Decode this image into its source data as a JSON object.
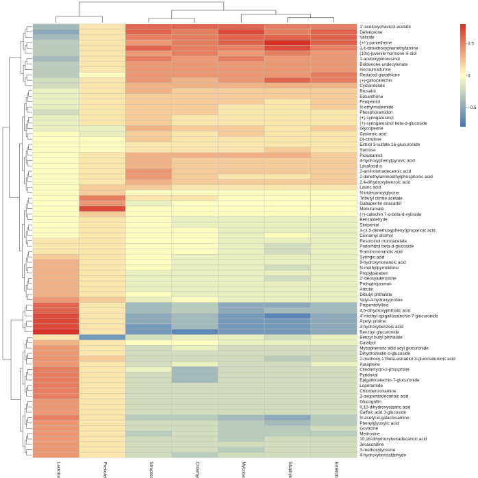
{
  "chart_data": {
    "type": "heatmap",
    "title": "",
    "xlabel": "",
    "ylabel": "",
    "columns": [
      "Lactobacillus",
      "Prevotella",
      "Streptococcus",
      "Chlamydia",
      "Mycobacterium",
      "Staphylococcus",
      "Enterobacter"
    ],
    "rows": [
      "1'-acetoxychavicol acetate",
      "Deferiprone",
      "Valtrate",
      "(+/-)-pantetheine",
      "3,4-dimethoxyphenethylamine",
      "(10s)-juvenile hormone iii diol",
      "1-acetoxypinoresinol",
      "Boldenone undecylenate",
      "Isocoumadurine",
      "Reduced glutathione",
      "(+)-gallocatechin",
      "Cyclandelate",
      "Brusatol",
      "Euxanthone",
      "Fenipentol",
      "N-ethylmaleimide",
      "Phosphoramidon",
      "(+)-syringaresinol",
      "(+)-syringaresinol beta-d-glucoside",
      "Glycoperine",
      "Cyclamic acid",
      "Dl-citrulline",
      "Estriol 3-sulfate 16-glucuronide",
      "Sucrose",
      "Piceatannol",
      "4-hydroxyphenylpyruvic acid",
      "Lasalocid a",
      "2-aminotetradecanoic acid",
      "2-dimethylaminoethylphosphonic acid",
      "2,4-dihydroxybenzoic acid",
      "Lauric acid",
      "N-tridecanoylglycine",
      "Tributyl citrate acetate",
      "Gabapentin enacarbil",
      "Mebutamate",
      "(+)-catechin 7-o-beta-d-xyloside",
      "Benzaldehyde",
      "Stiripentol",
      "3-(3,5-dimethoxyphenyl)propanoic acid",
      "Cinnamyl alcohol",
      "Resorcinol monoacetate",
      "Podorhizol beta-d-glucoside",
      "9-aminononanoic acid",
      "Syringic acid",
      "9-hydroxynonanoic acid",
      "N-methylpyrrolidone",
      "Propylparaben",
      "2'-deoxyadenosine",
      "Prohydrojasmon",
      "Arbutin",
      "Dibutyl phthalate",
      "Valyl-4-hydroxyproline",
      "Propentofylline",
      "4,5-dihydroxyphthalic acid",
      "4'-methyl-epigallocatechin-7-glucuronide",
      "Acetyl proline",
      "3-hydroxybenzoic acid",
      "Benzoyl glucuronide",
      "Benzyl butyl phthalate",
      "Catalpol",
      "Mycophenolic acid acyl glucuronide",
      "Dihydrozeatin-o-glucoside",
      "2-methoxy-17beta-estradiol 3-glucosiduronic acid",
      "Auraptene",
      "Clindamycin-2-phosphate",
      "Pyridoxal",
      "Epigallocatechin-7-glucuronide",
      "Loperamide",
      "Chlorbenzoxamine",
      "3-oxopentadecanoic acid",
      "Glucogallin",
      "9,10-dihydroxystearic acid",
      "Caffeic acid 3-glucoside",
      "N-acetyl-d-galactosamine",
      "Phenylglyoxylic acid",
      "Guvacine",
      "Metirosine",
      "10,16-dihydroxyhexadecanoic acid",
      "Jesaconitine",
      "3-methoxytyrosine",
      "4-hydroxybenzaldehyde"
    ],
    "values": [
      [
        -0.4,
        0.1,
        0.6,
        0.6,
        0.6,
        0.5,
        0.5
      ],
      [
        -0.5,
        0.1,
        0.6,
        0.5,
        0.7,
        0.5,
        0.6
      ],
      [
        -0.4,
        0.1,
        0.5,
        0.5,
        0.6,
        0.6,
        0.6
      ],
      [
        -0.3,
        0.1,
        0.4,
        0.5,
        0.6,
        0.8,
        0.6
      ],
      [
        -0.3,
        0.1,
        0.6,
        0.5,
        0.5,
        0.7,
        0.5
      ],
      [
        -0.3,
        0.1,
        0.4,
        0.5,
        0.4,
        0.5,
        0.4
      ],
      [
        -0.4,
        0.1,
        0.5,
        0.4,
        0.5,
        0.4,
        0.4
      ],
      [
        -0.3,
        0.1,
        0.4,
        0.4,
        0.4,
        0.4,
        0.4
      ],
      [
        -0.3,
        0.1,
        0.4,
        0.4,
        0.4,
        0.4,
        0.4
      ],
      [
        -0.3,
        0.0,
        0.4,
        0.4,
        0.4,
        0.4,
        0.5
      ],
      [
        -0.2,
        0.1,
        0.4,
        0.3,
        0.4,
        0.6,
        0.5
      ],
      [
        -0.2,
        0.1,
        0.3,
        0.3,
        0.3,
        0.3,
        0.3
      ],
      [
        -0.1,
        0.1,
        0.3,
        0.2,
        0.2,
        0.2,
        0.2
      ],
      [
        -0.1,
        0.1,
        0.2,
        0.2,
        0.2,
        0.2,
        0.2
      ],
      [
        -0.1,
        0.1,
        0.2,
        0.2,
        0.2,
        0.1,
        0.2
      ],
      [
        -0.1,
        0.1,
        0.2,
        0.2,
        0.1,
        0.1,
        0.2
      ],
      [
        -0.2,
        0.1,
        0.2,
        0.2,
        0.1,
        0.1,
        0.1
      ],
      [
        -0.1,
        0.1,
        0.2,
        0.1,
        0.1,
        0.1,
        0.1
      ],
      [
        -0.1,
        0.1,
        0.2,
        0.1,
        0.1,
        0.1,
        0.1
      ],
      [
        -0.1,
        -0.1,
        0.3,
        0.2,
        0.2,
        0.1,
        0.2
      ],
      [
        0.0,
        -0.1,
        0.2,
        0.1,
        0.2,
        0.1,
        0.1
      ],
      [
        0.0,
        0.0,
        0.2,
        0.1,
        0.1,
        0.1,
        0.1
      ],
      [
        0.0,
        0.0,
        0.1,
        0.1,
        0.1,
        0.1,
        0.1
      ],
      [
        0.0,
        0.0,
        0.1,
        0.1,
        0.1,
        0.2,
        0.1
      ],
      [
        0.0,
        0.1,
        0.3,
        0.3,
        0.3,
        0.3,
        0.2
      ],
      [
        0.0,
        0.1,
        0.3,
        0.2,
        0.2,
        0.2,
        0.2
      ],
      [
        0.0,
        0.1,
        0.3,
        0.2,
        0.2,
        0.2,
        0.2
      ],
      [
        0.0,
        0.1,
        0.4,
        0.2,
        0.2,
        0.2,
        0.2
      ],
      [
        0.0,
        0.1,
        0.4,
        0.2,
        0.1,
        0.1,
        0.2
      ],
      [
        0.0,
        0.1,
        0.3,
        0.2,
        0.2,
        0.2,
        0.2
      ],
      [
        0.0,
        0.2,
        0.2,
        0.1,
        0.1,
        0.1,
        0.1
      ],
      [
        0.0,
        0.2,
        0.0,
        0.0,
        0.0,
        0.0,
        0.0
      ],
      [
        0.0,
        0.5,
        0.1,
        0.1,
        0.0,
        0.0,
        0.0
      ],
      [
        0.0,
        0.4,
        -0.1,
        0.0,
        0.0,
        0.0,
        0.0
      ],
      [
        0.0,
        0.7,
        0.0,
        0.0,
        0.0,
        0.0,
        0.0
      ],
      [
        0.0,
        0.2,
        0.0,
        0.0,
        0.0,
        0.0,
        0.0
      ],
      [
        0.0,
        0.1,
        0.0,
        -0.1,
        -0.1,
        -0.1,
        -0.1
      ],
      [
        0.0,
        0.1,
        0.0,
        -0.1,
        -0.1,
        -0.1,
        -0.1
      ],
      [
        0.0,
        0.1,
        0.0,
        0.0,
        -0.1,
        -0.1,
        -0.1
      ],
      [
        0.0,
        0.1,
        0.0,
        0.0,
        -0.1,
        0.0,
        -0.1
      ],
      [
        0.1,
        0.1,
        0.0,
        0.0,
        -0.1,
        -0.1,
        -0.1
      ],
      [
        0.1,
        0.1,
        0.0,
        0.0,
        -0.1,
        -0.2,
        -0.1
      ],
      [
        0.1,
        0.1,
        0.0,
        0.0,
        -0.1,
        -0.2,
        -0.1
      ],
      [
        0.2,
        0.1,
        0.0,
        -0.1,
        -0.1,
        -0.1,
        -0.1
      ],
      [
        0.3,
        0.1,
        0.0,
        -0.1,
        -0.1,
        -0.1,
        -0.1
      ],
      [
        0.3,
        0.1,
        0.0,
        -0.1,
        -0.1,
        -0.2,
        -0.1
      ],
      [
        0.3,
        0.1,
        -0.1,
        -0.1,
        -0.1,
        -0.1,
        -0.1
      ],
      [
        0.3,
        0.1,
        -0.1,
        -0.1,
        -0.1,
        -0.2,
        -0.1
      ],
      [
        0.3,
        0.1,
        -0.1,
        -0.1,
        -0.1,
        -0.1,
        -0.1
      ],
      [
        0.3,
        0.1,
        -0.1,
        -0.1,
        -0.1,
        -0.1,
        -0.1
      ],
      [
        0.3,
        0.1,
        0.0,
        -0.1,
        -0.1,
        -0.1,
        -0.1
      ],
      [
        0.4,
        0.2,
        -0.1,
        0.0,
        -0.1,
        -0.1,
        -0.1
      ],
      [
        0.6,
        0.1,
        -0.4,
        -0.3,
        -0.5,
        -0.5,
        -0.4
      ],
      [
        0.6,
        0.1,
        -0.4,
        -0.3,
        -0.5,
        -0.4,
        -0.4
      ],
      [
        0.7,
        0.1,
        -0.5,
        -0.4,
        -0.6,
        -0.7,
        -0.5
      ],
      [
        0.7,
        0.1,
        -0.5,
        -0.4,
        -0.6,
        -0.6,
        -0.5
      ],
      [
        0.7,
        0.1,
        -0.6,
        -0.4,
        -0.6,
        -0.6,
        -0.5
      ],
      [
        0.8,
        0.1,
        -0.6,
        -0.7,
        -0.6,
        -0.6,
        -0.5
      ],
      [
        0.1,
        -0.6,
        -0.2,
        -0.1,
        -0.1,
        -0.2,
        -0.1
      ],
      [
        0.3,
        0.1,
        0.0,
        0.0,
        -0.1,
        -0.1,
        -0.1
      ],
      [
        0.4,
        0.1,
        -0.2,
        -0.1,
        -0.2,
        -0.2,
        -0.2
      ],
      [
        0.4,
        0.1,
        -0.2,
        -0.2,
        -0.2,
        -0.2,
        -0.2
      ],
      [
        0.4,
        0.2,
        -0.2,
        -0.2,
        -0.2,
        -0.3,
        -0.2
      ],
      [
        0.4,
        0.1,
        -0.2,
        -0.1,
        -0.2,
        -0.2,
        -0.1
      ],
      [
        0.5,
        0.1,
        -0.1,
        -0.4,
        -0.2,
        -0.2,
        -0.2
      ],
      [
        0.5,
        0.1,
        -0.2,
        -0.4,
        -0.2,
        -0.2,
        -0.2
      ],
      [
        0.5,
        0.1,
        -0.2,
        -0.4,
        -0.2,
        -0.2,
        -0.2
      ],
      [
        0.5,
        0.1,
        -0.2,
        -0.2,
        -0.2,
        -0.2,
        -0.2
      ],
      [
        0.5,
        0.1,
        -0.2,
        -0.2,
        -0.2,
        -0.2,
        -0.2
      ],
      [
        0.5,
        0.1,
        -0.2,
        -0.2,
        -0.2,
        -0.2,
        -0.2
      ],
      [
        0.4,
        0.1,
        -0.2,
        -0.2,
        -0.2,
        -0.2,
        -0.2
      ],
      [
        0.4,
        0.1,
        -0.2,
        -0.2,
        -0.2,
        -0.2,
        -0.2
      ],
      [
        0.4,
        0.1,
        -0.2,
        -0.2,
        -0.2,
        -0.2,
        -0.2
      ],
      [
        0.5,
        0.1,
        -0.3,
        -0.3,
        -0.4,
        -0.5,
        -0.3
      ],
      [
        0.4,
        0.1,
        -0.2,
        -0.2,
        -0.3,
        -0.4,
        -0.3
      ],
      [
        0.4,
        0.1,
        -0.2,
        -0.2,
        -0.3,
        -0.3,
        -0.2
      ],
      [
        0.4,
        0.1,
        -0.3,
        -0.2,
        -0.3,
        -0.3,
        -0.3
      ],
      [
        0.4,
        0.1,
        -0.2,
        -0.2,
        -0.3,
        -0.2,
        -0.2
      ],
      [
        0.4,
        0.1,
        -0.2,
        -0.2,
        -0.2,
        -0.2,
        -0.2
      ],
      [
        0.4,
        0.1,
        -0.2,
        -0.2,
        -0.3,
        -0.2,
        -0.2
      ],
      [
        0.4,
        0.1,
        -0.2,
        -0.3,
        -0.2,
        -0.2,
        -0.2
      ]
    ],
    "legend": {
      "position": "right",
      "range": [
        -0.8,
        0.8
      ],
      "ticks": [
        0.5,
        0,
        -0.5
      ],
      "tick_labels": [
        "0.5",
        "0",
        "−0.5"
      ]
    },
    "colors": {
      "low": "#4575b4",
      "mid": "#ffffbf",
      "high": "#d73027"
    },
    "column_dendrogram": {
      "heights": [
        10,
        3,
        7,
        2,
        6,
        4
      ]
    }
  }
}
